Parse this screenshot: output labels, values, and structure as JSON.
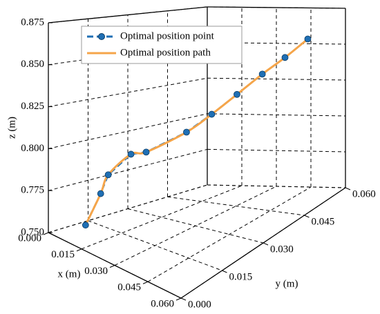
{
  "chart_data": {
    "type": "line3d",
    "xlabel": "x (m)",
    "ylabel": "y (m)",
    "zlabel": "z (m)",
    "xlim": [
      0,
      0.06
    ],
    "ylim": [
      0,
      0.06
    ],
    "zlim": [
      0.75,
      0.875
    ],
    "xticks": [
      {
        "value": 0,
        "label": "0.000"
      },
      0.015,
      {
        "value": 0.03,
        "label": "0.030"
      },
      0.045,
      {
        "value": 0.06,
        "label": "0.060"
      }
    ],
    "yticks": [
      {
        "value": 0,
        "label": "0.000"
      },
      0.015,
      {
        "value": 0.03,
        "label": "0.030"
      },
      0.045,
      {
        "value": 0.06,
        "label": "0.060"
      }
    ],
    "zticks": [
      {
        "value": 0.75,
        "label": "0.750"
      },
      0.775,
      {
        "value": 0.8,
        "label": "0.800"
      },
      0.825,
      {
        "value": 0.85,
        "label": "0.850"
      },
      0.875
    ],
    "grid": true,
    "legend": "upper left",
    "series": [
      {
        "name": "Optimal position point",
        "color": "#1f6fb4",
        "linestyle": "dashed",
        "marker": true,
        "x": [
          0.012,
          0.014,
          0.015,
          0.018,
          0.02,
          0.026,
          0.03,
          0.034,
          0.038,
          0.042,
          0.046
        ],
        "y": [
          0.004,
          0.008,
          0.01,
          0.016,
          0.02,
          0.03,
          0.036,
          0.042,
          0.048,
          0.053,
          0.058
        ],
        "z": [
          0.76,
          0.778,
          0.789,
          0.8,
          0.8,
          0.809,
          0.818,
          0.828,
          0.838,
          0.846,
          0.855
        ]
      },
      {
        "name": "Optimal position path",
        "color": "#f5a54a",
        "linestyle": "solid",
        "marker": false,
        "smooth": true,
        "x": [
          0.012,
          0.014,
          0.015,
          0.018,
          0.02,
          0.026,
          0.03,
          0.034,
          0.038,
          0.042,
          0.046
        ],
        "y": [
          0.004,
          0.008,
          0.01,
          0.016,
          0.02,
          0.03,
          0.036,
          0.042,
          0.048,
          0.053,
          0.058
        ],
        "z": [
          0.76,
          0.778,
          0.789,
          0.8,
          0.8,
          0.809,
          0.818,
          0.828,
          0.838,
          0.846,
          0.855
        ]
      }
    ]
  }
}
